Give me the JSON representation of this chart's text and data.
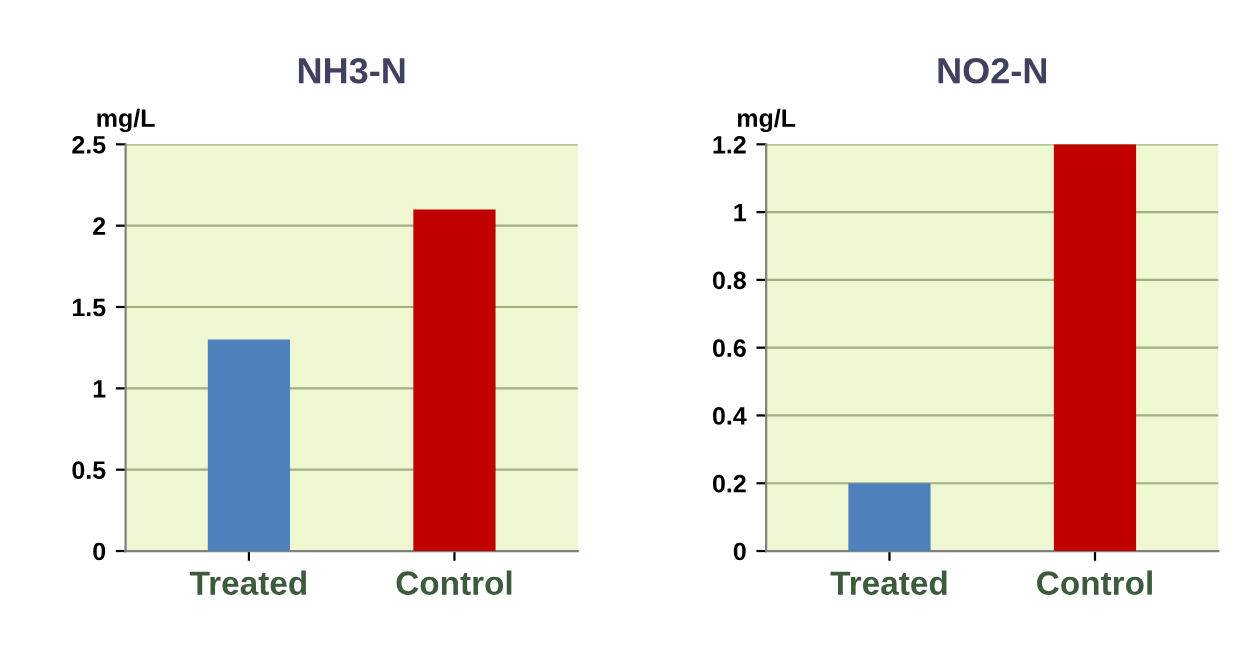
{
  "chart_data": [
    {
      "type": "bar",
      "title": "NH3-N",
      "ylabel": "mg/L",
      "categories": [
        "Treated",
        "Control"
      ],
      "values": [
        1.3,
        2.1
      ],
      "colors": [
        "#4f81bd",
        "#c00000"
      ],
      "ylim": [
        0,
        2.5
      ],
      "yticks": [
        0,
        0.5,
        1,
        1.5,
        2,
        2.5
      ],
      "grid": "y"
    },
    {
      "type": "bar",
      "title": "NO2-N",
      "ylabel": "mg/L",
      "categories": [
        "Treated",
        "Control"
      ],
      "values": [
        0.2,
        1.2
      ],
      "colors": [
        "#4f81bd",
        "#c00000"
      ],
      "ylim": [
        0,
        1.2
      ],
      "yticks": [
        0,
        0.2,
        0.4,
        0.6,
        0.8,
        1,
        1.2
      ],
      "grid": "y"
    }
  ]
}
